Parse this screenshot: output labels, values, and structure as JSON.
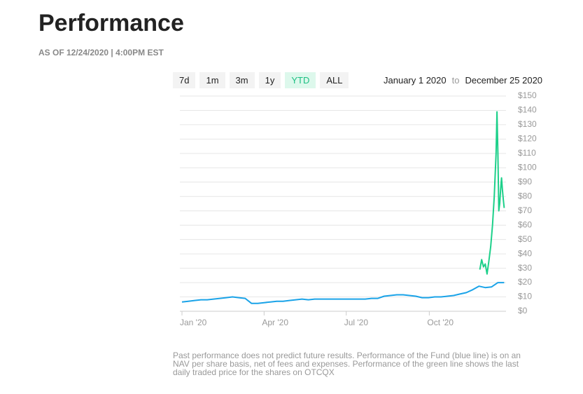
{
  "header": {
    "title": "Performance",
    "subtitle": "AS OF 12/24/2020 | 4:00PM EST"
  },
  "controls": {
    "ranges": [
      "7d",
      "1m",
      "3m",
      "1y",
      "YTD",
      "ALL"
    ],
    "active": 4,
    "from": "January 1 2020",
    "separator": "to",
    "to": "December 25 2020"
  },
  "chart_data": {
    "type": "line",
    "xlim": [
      0,
      359
    ],
    "xticks": [
      {
        "value": 0,
        "label": "Jan '20"
      },
      {
        "value": 91,
        "label": "Apr '20"
      },
      {
        "value": 182,
        "label": "Jul '20"
      },
      {
        "value": 274,
        "label": "Oct '20"
      }
    ],
    "ylim": [
      0,
      150
    ],
    "yticks": [
      {
        "value": 0,
        "label": "$0"
      },
      {
        "value": 10,
        "label": "$10"
      },
      {
        "value": 20,
        "label": "$20"
      },
      {
        "value": 30,
        "label": "$30"
      },
      {
        "value": 40,
        "label": "$40"
      },
      {
        "value": 50,
        "label": "$50"
      },
      {
        "value": 60,
        "label": "$60"
      },
      {
        "value": 70,
        "label": "$70"
      },
      {
        "value": 80,
        "label": "$80"
      },
      {
        "value": 90,
        "label": "$90"
      },
      {
        "value": 100,
        "label": "$100"
      },
      {
        "value": 110,
        "label": "$110"
      },
      {
        "value": 120,
        "label": "$120"
      },
      {
        "value": 130,
        "label": "$130"
      },
      {
        "value": 140,
        "label": "$140"
      },
      {
        "value": 150,
        "label": "$150"
      }
    ],
    "grid": true,
    "series": [
      {
        "color": "#1aa3e8",
        "x": [
          0,
          7,
          14,
          21,
          28,
          35,
          42,
          49,
          56,
          63,
          70,
          77,
          84,
          91,
          98,
          105,
          112,
          119,
          126,
          133,
          140,
          147,
          154,
          161,
          168,
          175,
          182,
          189,
          196,
          203,
          210,
          217,
          224,
          231,
          238,
          245,
          252,
          259,
          266,
          273,
          280,
          287,
          294,
          301,
          308,
          315,
          322,
          329,
          336,
          343,
          350,
          357
        ],
        "values": [
          6.5,
          7,
          7.5,
          8,
          8,
          8.5,
          9,
          9.5,
          10,
          9.5,
          9,
          5.5,
          5.5,
          6,
          6.5,
          7,
          7,
          7.5,
          8,
          8.5,
          8,
          8.5,
          8.5,
          8.5,
          8.5,
          8.5,
          8.5,
          8.5,
          8.5,
          8.5,
          9,
          9,
          10.5,
          11,
          11.5,
          11.5,
          11,
          10.5,
          9.5,
          9.5,
          10,
          10,
          10.5,
          11,
          12,
          13,
          15,
          17.5,
          16.5,
          17,
          20,
          20
        ]
      },
      {
        "color": "#1dd08a",
        "x": [
          330,
          332,
          334,
          336,
          338,
          340,
          342,
          344,
          346,
          348,
          349,
          350,
          351,
          352,
          353,
          354,
          355,
          356,
          357
        ],
        "values": [
          29,
          36,
          31,
          33,
          26,
          35,
          45,
          60,
          80,
          110,
          139,
          110,
          70,
          75,
          85,
          93,
          85,
          78,
          72
        ]
      }
    ]
  },
  "footnote": [
    "Past performance does not predict future results. Performance of the Fund (blue line) is on an",
    "NAV per share basis, net of fees and expenses. Performance of the green line shows the last",
    "daily traded price for the shares on OTCQX"
  ]
}
